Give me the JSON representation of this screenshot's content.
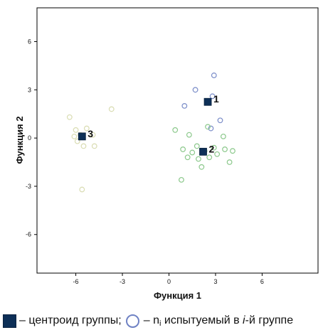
{
  "chart_data": {
    "type": "scatter",
    "xlabel": "Функция 1",
    "ylabel": "Функция 2",
    "xlim": [
      -8.5,
      9.6
    ],
    "ylim": [
      -8.4,
      8.1
    ],
    "xticks": [
      -6,
      -3,
      0,
      3,
      6
    ],
    "yticks": [
      6,
      3,
      0,
      -3,
      -6
    ],
    "xtick_labels": [
      "-6",
      "-3",
      "0",
      "3",
      "6"
    ],
    "ytick_labels": [
      "6",
      "3",
      "0",
      "-3",
      "-6"
    ],
    "grid": false,
    "series": [
      {
        "group": "1",
        "marker": "open-circle",
        "color": "#7a8cc8",
        "points": [
          [
            2.9,
            3.9
          ],
          [
            1.7,
            3.0
          ],
          [
            2.8,
            2.6
          ],
          [
            1.0,
            2.0
          ],
          [
            3.3,
            1.1
          ],
          [
            2.7,
            0.6
          ]
        ]
      },
      {
        "group": "2",
        "marker": "open-circle",
        "color": "#8bc88b",
        "points": [
          [
            0.4,
            0.5
          ],
          [
            1.3,
            0.2
          ],
          [
            2.5,
            0.7
          ],
          [
            3.5,
            0.1
          ],
          [
            0.9,
            -0.7
          ],
          [
            1.5,
            -0.9
          ],
          [
            1.8,
            -0.5
          ],
          [
            2.3,
            -0.8
          ],
          [
            2.9,
            -0.6
          ],
          [
            3.6,
            -0.7
          ],
          [
            4.1,
            -0.8
          ],
          [
            1.2,
            -1.2
          ],
          [
            1.9,
            -1.3
          ],
          [
            2.6,
            -1.2
          ],
          [
            3.1,
            -1.0
          ],
          [
            3.9,
            -1.5
          ],
          [
            2.1,
            -1.8
          ],
          [
            0.8,
            -2.6
          ]
        ]
      },
      {
        "group": "3",
        "marker": "open-circle",
        "color": "#d9dcb2",
        "points": [
          [
            -6.4,
            1.3
          ],
          [
            -3.7,
            1.8
          ],
          [
            -6.0,
            0.5
          ],
          [
            -5.3,
            0.6
          ],
          [
            -5.7,
            0.2
          ],
          [
            -6.1,
            0.1
          ],
          [
            -4.9,
            0.2
          ],
          [
            -5.9,
            -0.2
          ],
          [
            -5.5,
            -0.5
          ],
          [
            -4.8,
            -0.5
          ],
          [
            -5.6,
            -3.2
          ]
        ]
      }
    ],
    "centroids": [
      {
        "label": "1",
        "x": 2.5,
        "y": 2.25
      },
      {
        "label": "2",
        "x": 2.2,
        "y": -0.85
      },
      {
        "label": "3",
        "x": -5.6,
        "y": 0.1
      }
    ]
  },
  "legend": {
    "centroid_text": "– центроид группы;",
    "member_text_prefix": "– n",
    "member_text_sub": "i",
    "member_text_mid": " испытуемый в ",
    "member_text_italic": "i",
    "member_text_suffix": "-й группе"
  },
  "colors": {
    "centroid": "#0d2f57",
    "axis": "#000000"
  }
}
